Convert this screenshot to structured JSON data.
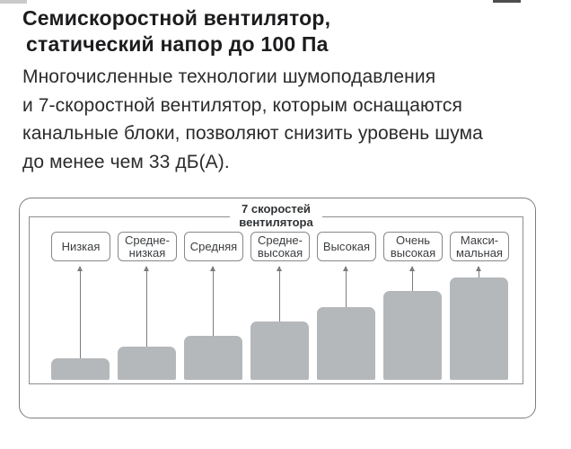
{
  "heading": {
    "line1": "Семискоростной вентилятор,",
    "line2": "статический напор до 100 Па"
  },
  "paragraph": "Многочисленные технологии шумоподавления\nи 7-скоростной вентилятор, которым оснащаются\nканальные блоки, позволяют снизить уровень шума\nдо менее чем 33 дБ(А).",
  "diagram": {
    "title": "7 скоростей\nвентилятора",
    "labels": [
      "Низкая",
      "Средне-\nнизкая",
      "Средняя",
      "Средне-\nвысокая",
      "Высокая",
      "Очень\nвысокая",
      "Макси-\nмальная"
    ]
  },
  "chart_data": {
    "type": "bar",
    "title": "7 скоростей вентилятора",
    "categories": [
      "Низкая",
      "Средне-низкая",
      "Средняя",
      "Средне-высокая",
      "Высокая",
      "Очень высокая",
      "Максимальная"
    ],
    "values": [
      24,
      37,
      49,
      65,
      81,
      99,
      114
    ],
    "values_note": "bar heights in px; no numeric axis shown — bars depict fan speed steps 1–7 increasing monotonically",
    "xlabel": "",
    "ylabel": "",
    "grid": false,
    "legend": false
  },
  "colors": {
    "bar_fill": "#b5b8ba",
    "frame_border": "#7b7e81",
    "inner_border": "#8a8d90",
    "label_box_border": "#85888b",
    "arrow": "#7a7d80",
    "heading_text": "#1c1c1e",
    "body_text": "#2b2b2d",
    "label_text": "#3b3e41"
  }
}
